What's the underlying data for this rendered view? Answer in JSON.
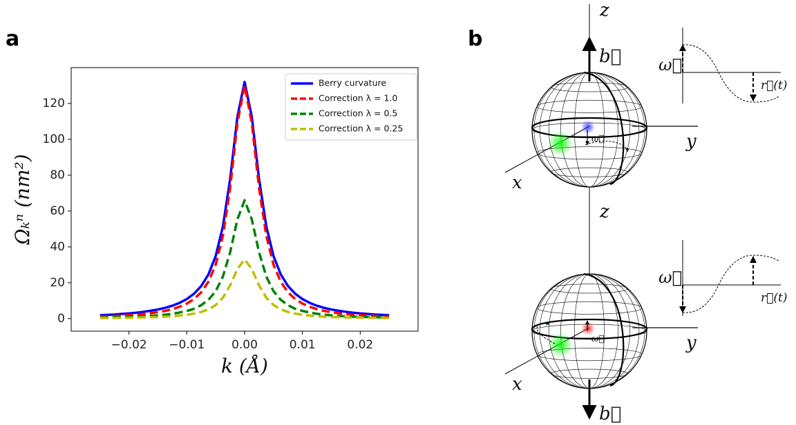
{
  "panels": {
    "a": "a",
    "b": "b"
  },
  "chart_data": {
    "type": "line",
    "x_label": "k (Å)",
    "y_label": "Ωₖⁿ (nm²)",
    "x": [
      -0.025,
      -0.02375,
      -0.0225,
      -0.02125,
      -0.02,
      -0.01875,
      -0.0175,
      -0.01625,
      -0.015,
      -0.01375,
      -0.0125,
      -0.01125,
      -0.01,
      -0.00875,
      -0.0075,
      -0.00625,
      -0.005,
      -0.00375,
      -0.0025,
      -0.00125,
      0,
      0.00125,
      0.0025,
      0.00375,
      0.005,
      0.00625,
      0.0075,
      0.00875,
      0.01,
      0.01125,
      0.0125,
      0.01375,
      0.015,
      0.01625,
      0.0175,
      0.01875,
      0.02,
      0.02125,
      0.0225,
      0.02375,
      0.025
    ],
    "series": [
      {
        "name": "Berry curvature",
        "color": "#0000ff",
        "linestyle": "solid",
        "values": [
          1.9,
          2.1,
          2.3,
          2.6,
          2.9,
          3.3,
          3.8,
          4.4,
          5.1,
          6.0,
          7.2,
          8.8,
          10.9,
          13.9,
          18.2,
          24.7,
          34.9,
          51.5,
          77.9,
          112.5,
          132,
          112.5,
          77.9,
          51.5,
          34.9,
          24.7,
          18.2,
          13.9,
          10.9,
          8.8,
          7.2,
          6.0,
          5.1,
          4.4,
          3.8,
          3.3,
          2.9,
          2.6,
          2.3,
          2.1,
          1.9
        ]
      },
      {
        "name": "Correction λ = 1.0",
        "color": "#ff0000",
        "linestyle": "dashed",
        "values": [
          1.2,
          1.3,
          1.5,
          1.7,
          2.0,
          2.2,
          2.6,
          3.0,
          3.6,
          4.3,
          5.3,
          6.6,
          8.4,
          10.9,
          14.7,
          20.6,
          30.1,
          46.2,
          72.8,
          109,
          130,
          109,
          72.8,
          46.2,
          30.1,
          20.6,
          14.7,
          10.9,
          8.4,
          6.6,
          5.3,
          4.3,
          3.6,
          3.0,
          2.6,
          2.2,
          2.0,
          1.7,
          1.5,
          1.3,
          1.2
        ]
      },
      {
        "name": "Correction λ = 0.5",
        "color": "#008000",
        "linestyle": "dashed",
        "values": [
          0.6,
          0.7,
          0.8,
          0.9,
          1.0,
          1.1,
          1.3,
          1.5,
          1.8,
          2.2,
          2.7,
          3.4,
          4.3,
          5.5,
          7.5,
          10.5,
          15.3,
          23.5,
          37,
          55.3,
          66,
          55.3,
          37,
          23.5,
          15.3,
          10.5,
          7.5,
          5.5,
          4.3,
          3.4,
          2.7,
          2.2,
          1.8,
          1.5,
          1.3,
          1.1,
          1.0,
          0.9,
          0.8,
          0.7,
          0.6
        ]
      },
      {
        "name": "Correction λ = 0.25",
        "color": "#bfbf00",
        "linestyle": "dashed",
        "values": [
          0.3,
          0.3,
          0.4,
          0.4,
          0.5,
          0.6,
          0.7,
          0.8,
          0.9,
          1.1,
          1.3,
          1.7,
          2.1,
          2.8,
          3.7,
          5.2,
          7.6,
          11.7,
          18.5,
          27.7,
          33,
          27.7,
          18.5,
          11.7,
          7.6,
          5.2,
          3.7,
          2.8,
          2.1,
          1.7,
          1.3,
          1.1,
          0.9,
          0.8,
          0.7,
          0.6,
          0.5,
          0.4,
          0.4,
          0.3,
          0.3
        ]
      }
    ],
    "xlim": [
      -0.03,
      0.03
    ],
    "ylim": [
      -7,
      140
    ],
    "xticks": [
      {
        "value": -0.02,
        "label": "−0.02"
      },
      {
        "value": -0.01,
        "label": "−0.01"
      },
      {
        "value": 0,
        "label": "0.00"
      },
      0.01,
      0.02
    ],
    "yticks": [
      0,
      20,
      40,
      60,
      80,
      100,
      120
    ],
    "grid": false,
    "legend": "upper right"
  },
  "diagram": {
    "top": {
      "z": "z",
      "b": "b⃗",
      "x": "x",
      "y": "y",
      "omega": "ω⃗",
      "omega_small": "ω⃗",
      "r": "r⃗(t)"
    },
    "bottom": {
      "z": "z",
      "b": "b⃗",
      "x": "x",
      "y": "y",
      "omega": "ω⃗",
      "omega_small": "ω⃗",
      "r": "r⃗(t)"
    }
  }
}
